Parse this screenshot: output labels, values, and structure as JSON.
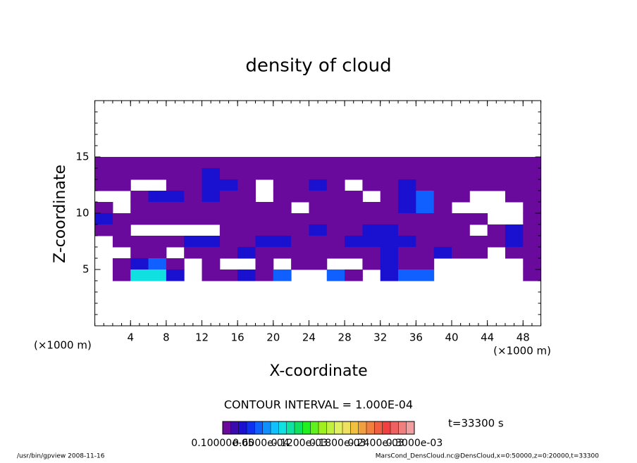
{
  "chart_data": {
    "type": "contour",
    "title": "density of cloud",
    "xlabel": "X-coordinate",
    "ylabel": "Z-coordinate",
    "x_unit": "(×1000 m)",
    "y_unit": "(×1000 m)",
    "xlim": [
      0,
      50
    ],
    "ylim": [
      0,
      20
    ],
    "xticks": [
      4,
      8,
      12,
      16,
      20,
      24,
      28,
      32,
      36,
      40,
      44,
      48
    ],
    "yticks": [
      5,
      10,
      15
    ],
    "contour_interval": "CONTOUR INTERVAL = 1.000E-04",
    "time_label": "t=33300 s",
    "footer_left": "/usr/bin/gpview  2008-11-16",
    "footer_right": "MarsCond_DensCloud.nc@DensCloud,x=0:50000,z=0:20000,t=33300",
    "colorbar": {
      "range": [
        1e-06,
        0.0003
      ],
      "labels": [
        "0.10000e-05",
        "0.6000e-04",
        "0.1200e-03",
        "0.1800e-03",
        "0.2400e-03",
        "0.3000e-03"
      ],
      "colors": [
        "#6a0a9c",
        "#3a0ab0",
        "#1a10d0",
        "#1030f0",
        "#1060ff",
        "#1090ff",
        "#10c0ff",
        "#10e0e0",
        "#10e0a0",
        "#10e060",
        "#20f020",
        "#60f020",
        "#a0f020",
        "#c0f040",
        "#e0f060",
        "#f0e060",
        "#f0c040",
        "#f0a040",
        "#f08040",
        "#f06040",
        "#f04040",
        "#f06060",
        "#f08080",
        "#f0a0a0"
      ]
    },
    "field": {
      "x": [
        1,
        3,
        5,
        7,
        9,
        11,
        13,
        15,
        17,
        19,
        21,
        23,
        25,
        27,
        29,
        31,
        33,
        35,
        37,
        39,
        41,
        43,
        45,
        47,
        49
      ],
      "z": [
        14.5,
        13.5,
        12.5,
        11.5,
        10.5,
        9.5,
        8.5,
        7.5,
        6.5,
        5.5,
        4.5
      ],
      "values": [
        [
          5e-06,
          5e-06,
          5e-06,
          5e-06,
          5e-06,
          5e-06,
          5e-06,
          5e-06,
          5e-06,
          5e-06,
          5e-06,
          5e-06,
          5e-06,
          5e-06,
          5e-06,
          5e-06,
          5e-06,
          5e-06,
          5e-06,
          5e-06,
          5e-06,
          5e-06,
          5e-06,
          5e-06,
          5e-06
        ],
        [
          5e-06,
          5e-06,
          5e-06,
          5e-06,
          5e-06,
          5e-06,
          3e-05,
          5e-06,
          5e-06,
          5e-06,
          5e-06,
          5e-06,
          5e-06,
          5e-06,
          5e-06,
          5e-06,
          5e-06,
          5e-06,
          5e-06,
          5e-06,
          5e-06,
          5e-06,
          5e-06,
          5e-06,
          5e-06
        ],
        [
          5e-06,
          5e-06,
          null,
          null,
          5e-06,
          5e-06,
          3e-05,
          3e-05,
          5e-06,
          null,
          5e-06,
          5e-06,
          3e-05,
          5e-06,
          null,
          5e-06,
          5e-06,
          3e-05,
          5e-06,
          5e-06,
          5e-06,
          5e-06,
          5e-06,
          5e-06,
          5e-06
        ],
        [
          null,
          null,
          5e-06,
          3e-05,
          3e-05,
          5e-06,
          3e-05,
          5e-06,
          5e-06,
          null,
          5e-06,
          5e-06,
          5e-06,
          5e-06,
          5e-06,
          null,
          5e-06,
          3e-05,
          6e-05,
          5e-06,
          5e-06,
          null,
          null,
          5e-06,
          5e-06
        ],
        [
          5e-06,
          null,
          5e-06,
          5e-06,
          5e-06,
          5e-06,
          5e-06,
          5e-06,
          5e-06,
          5e-06,
          5e-06,
          null,
          5e-06,
          5e-06,
          5e-06,
          5e-06,
          5e-06,
          3e-05,
          6e-05,
          5e-06,
          null,
          null,
          null,
          null,
          5e-06
        ],
        [
          3e-05,
          5e-06,
          5e-06,
          5e-06,
          5e-06,
          5e-06,
          5e-06,
          5e-06,
          5e-06,
          5e-06,
          5e-06,
          5e-06,
          5e-06,
          5e-06,
          5e-06,
          5e-06,
          5e-06,
          5e-06,
          5e-06,
          5e-06,
          5e-06,
          5e-06,
          null,
          null,
          5e-06
        ],
        [
          5e-06,
          5e-06,
          null,
          null,
          null,
          null,
          null,
          5e-06,
          5e-06,
          5e-06,
          5e-06,
          5e-06,
          3e-05,
          5e-06,
          5e-06,
          3e-05,
          3e-05,
          5e-06,
          5e-06,
          5e-06,
          5e-06,
          null,
          5e-06,
          3e-05,
          5e-06
        ],
        [
          null,
          5e-06,
          5e-06,
          5e-06,
          5e-06,
          3e-05,
          3e-05,
          5e-06,
          5e-06,
          3e-05,
          3e-05,
          5e-06,
          5e-06,
          5e-06,
          3e-05,
          3e-05,
          3e-05,
          3e-05,
          5e-06,
          5e-06,
          5e-06,
          5e-06,
          5e-06,
          3e-05,
          5e-06
        ],
        [
          null,
          null,
          5e-06,
          5e-06,
          null,
          5e-06,
          5e-06,
          5e-06,
          3e-05,
          5e-06,
          5e-06,
          5e-06,
          5e-06,
          5e-06,
          5e-06,
          5e-06,
          3e-05,
          5e-06,
          5e-06,
          3e-05,
          5e-06,
          5e-06,
          null,
          5e-06,
          5e-06
        ],
        [
          null,
          5e-06,
          3e-05,
          6e-05,
          5e-06,
          null,
          5e-06,
          null,
          null,
          5e-06,
          null,
          5e-06,
          5e-06,
          null,
          null,
          5e-06,
          3e-05,
          5e-06,
          5e-06,
          null,
          null,
          null,
          null,
          null,
          5e-06
        ],
        [
          null,
          5e-06,
          0.0001,
          0.0001,
          3e-05,
          null,
          5e-06,
          5e-06,
          3e-05,
          5e-06,
          6e-05,
          null,
          null,
          6e-05,
          5e-06,
          null,
          3e-05,
          6e-05,
          6e-05,
          null,
          null,
          null,
          null,
          null,
          5e-06
        ]
      ]
    }
  }
}
